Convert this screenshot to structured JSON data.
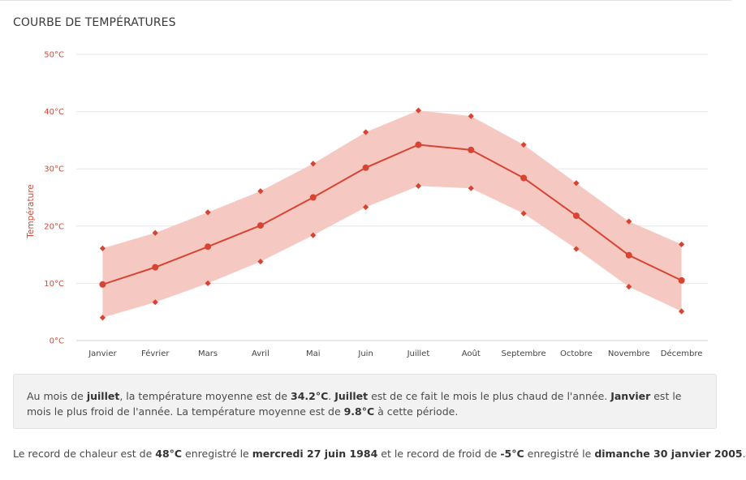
{
  "section_title": "COURBE DE TEMPÉRATURES",
  "chart_data": {
    "type": "line",
    "title": "",
    "xlabel": "",
    "ylabel": "Température",
    "y_unit": "°C",
    "ylim": [
      0,
      50
    ],
    "y_ticks": [
      "0°C",
      "10°C",
      "20°C",
      "30°C",
      "40°C",
      "50°C"
    ],
    "grid": true,
    "categories": [
      "Janvier",
      "Février",
      "Mars",
      "Avril",
      "Mai",
      "Juin",
      "Juillet",
      "Août",
      "Septembre",
      "Octobre",
      "Novembre",
      "Décembre"
    ],
    "series": [
      {
        "role": "average",
        "values": [
          9.8,
          12.8,
          16.4,
          20.1,
          25.0,
          30.2,
          34.2,
          33.3,
          28.4,
          21.8,
          14.9,
          10.5
        ]
      },
      {
        "role": "max",
        "values": [
          16.1,
          18.8,
          22.4,
          26.1,
          30.9,
          36.4,
          40.2,
          39.2,
          34.2,
          27.5,
          20.8,
          16.8
        ]
      },
      {
        "role": "min",
        "values": [
          4.0,
          6.7,
          10.0,
          13.8,
          18.4,
          23.3,
          27.0,
          26.6,
          22.2,
          16.0,
          9.4,
          5.1
        ]
      }
    ],
    "colors": {
      "line": "#d84332",
      "band": "#f5c8c2",
      "grid": "#e6e6e6",
      "axis_text": "#d14a3a"
    }
  },
  "info": {
    "t1": "Au mois de ",
    "b1": "juillet",
    "t2": ", la température moyenne est de ",
    "b2": "34.2°C",
    "t3": ". ",
    "b3": "Juillet",
    "t4": " est de ce fait le mois le plus chaud de l'année. ",
    "b4": "Janvier",
    "t5": " est le mois le plus froid de l'année. La température moyenne est de ",
    "b5": "9.8°C",
    "t6": " à cette période."
  },
  "records": {
    "t1": "Le record de chaleur est de ",
    "hot_value": "48°C",
    "t2": " enregistré le ",
    "hot_date": "mercredi 27 juin 1984",
    "t3": " et le record de froid de ",
    "cold_value": "-5°C",
    "t4": " enregistré le ",
    "cold_date": "dimanche 30 janvier 2005",
    "t5": "."
  }
}
